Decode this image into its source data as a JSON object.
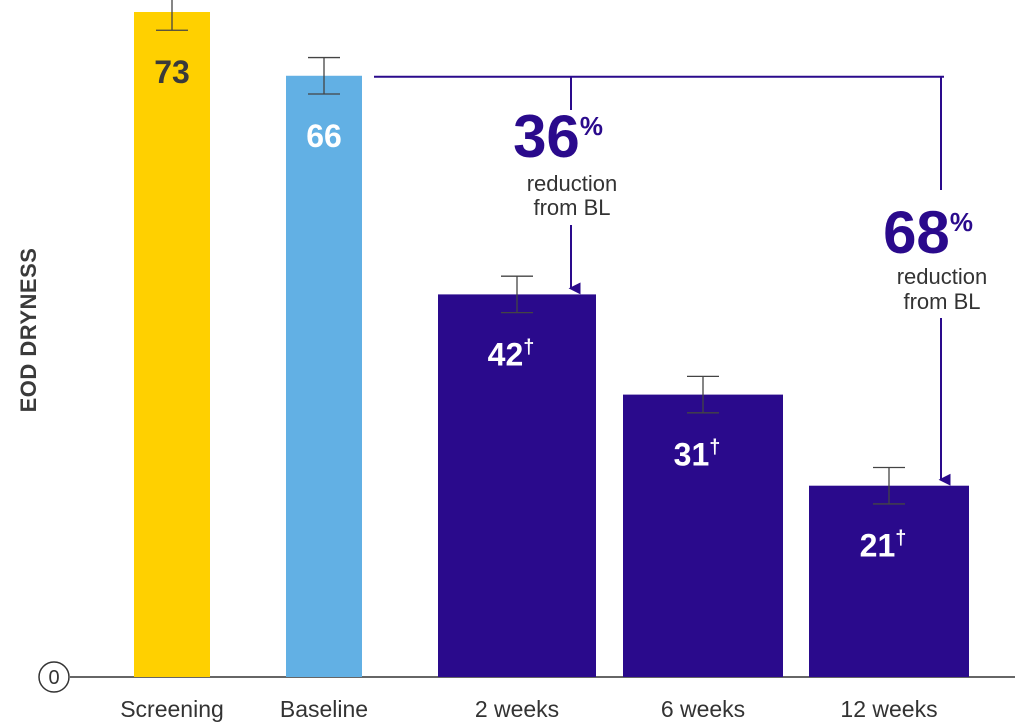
{
  "chart_data": {
    "type": "bar",
    "ylabel": "EOD DRYNESS",
    "ylim": [
      0,
      73
    ],
    "y_tick_labels": [
      "0"
    ],
    "categories": [
      "Screening",
      "Baseline",
      "2 weeks",
      "6 weeks",
      "12 weeks"
    ],
    "values": [
      73,
      66,
      42,
      31,
      21
    ],
    "value_labels": [
      "73",
      "66",
      "42",
      "31",
      "21"
    ],
    "value_markers": [
      "",
      "",
      "†",
      "†",
      "†"
    ],
    "error_bars": [
      2,
      2,
      2,
      2,
      2
    ],
    "colors": [
      "#FFD000",
      "#62B0E4",
      "#2A0A8C",
      "#2A0A8C",
      "#2A0A8C"
    ],
    "label_colors": [
      "#3a3a3a",
      "#ffffff",
      "#ffffff",
      "#ffffff",
      "#ffffff"
    ],
    "annotations": [
      {
        "from": "Baseline",
        "to": "2 weeks",
        "percent": "36",
        "percent_sign": "%",
        "line1": "reduction",
        "line2": "from BL"
      },
      {
        "from": "Baseline",
        "to": "12 weeks",
        "percent": "68",
        "percent_sign": "%",
        "line1": "reduction",
        "line2": "from BL"
      }
    ],
    "grid": false,
    "legend": "none"
  }
}
